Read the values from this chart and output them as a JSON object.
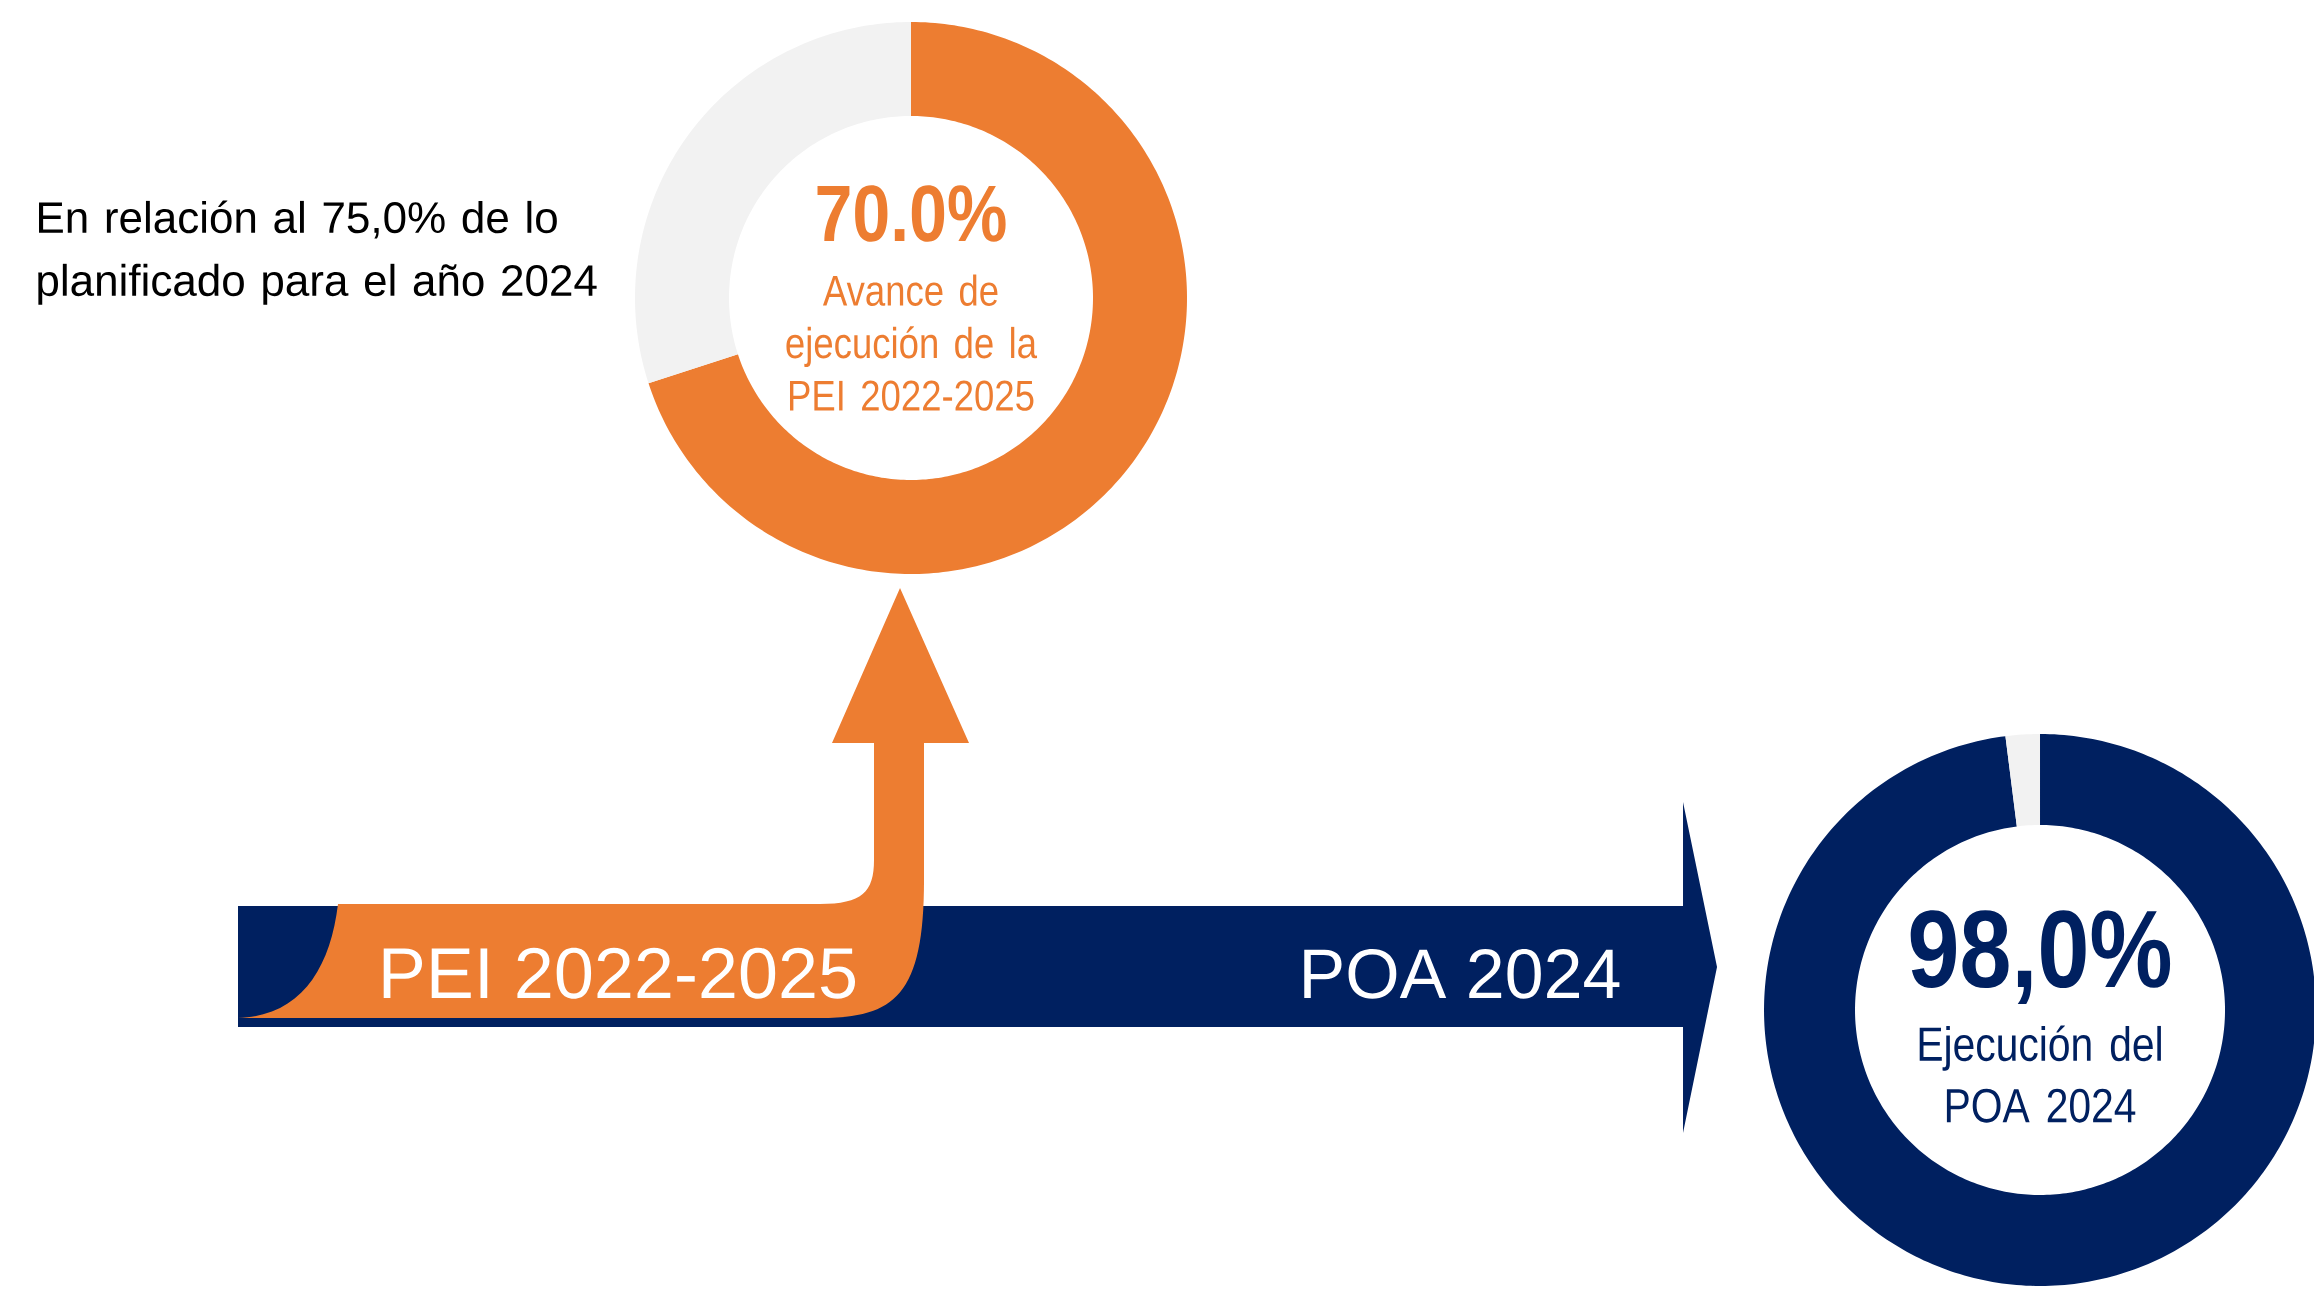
{
  "chart_data": [
    {
      "type": "donut",
      "title": "Avance de ejecución de la PEI 2022-2025",
      "categories": [
        null,
        null
      ],
      "values": [
        70.0,
        30.0
      ],
      "colors": [
        "#ed7d31",
        "#f2f2f2"
      ],
      "value_labels": [
        "70.0%",
        null
      ],
      "annotations": [
        "En relación al 75,0% de lo planificado para el año 2024",
        "PEI 2022-2025"
      ]
    },
    {
      "type": "donut",
      "title": "Ejecución del POA 2024",
      "categories": [
        null,
        null
      ],
      "values": [
        98.0,
        2.0
      ],
      "colors": [
        "#002060",
        "#f2f2f2"
      ],
      "value_labels": [
        "98,0%",
        null
      ],
      "annotations": [
        "POA 2024"
      ]
    }
  ]
}
